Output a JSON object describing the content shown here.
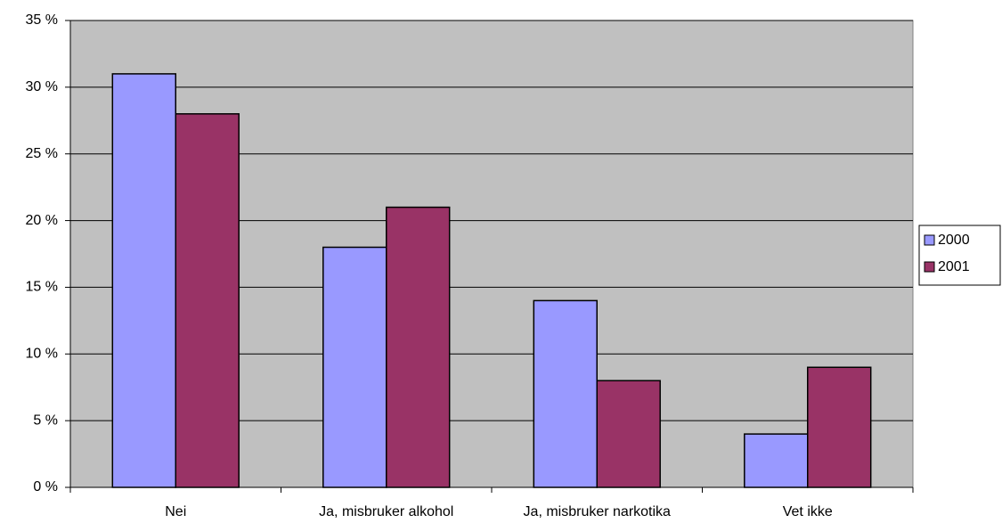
{
  "chart_data": {
    "type": "bar",
    "categories": [
      "Nei",
      "Ja, misbruker alkohol",
      "Ja, misbruker narkotika",
      "Vet ikke"
    ],
    "series": [
      {
        "name": "2000",
        "color": "#9999ff",
        "values": [
          31,
          18,
          14,
          4
        ]
      },
      {
        "name": "2001",
        "color": "#993366",
        "values": [
          28,
          21,
          8,
          9
        ]
      }
    ],
    "ylim": [
      0,
      35
    ],
    "yticks": [
      {
        "value": 0,
        "label": "0 %"
      },
      {
        "value": 5,
        "label": "5 %"
      },
      {
        "value": 10,
        "label": "10 %"
      },
      {
        "value": 15,
        "label": "15 %"
      },
      {
        "value": 20,
        "label": "20 %"
      },
      {
        "value": 25,
        "label": "25 %"
      },
      {
        "value": 30,
        "label": "30 %"
      },
      {
        "value": 35,
        "label": "35 %"
      }
    ],
    "grid": true,
    "legend": "right"
  }
}
